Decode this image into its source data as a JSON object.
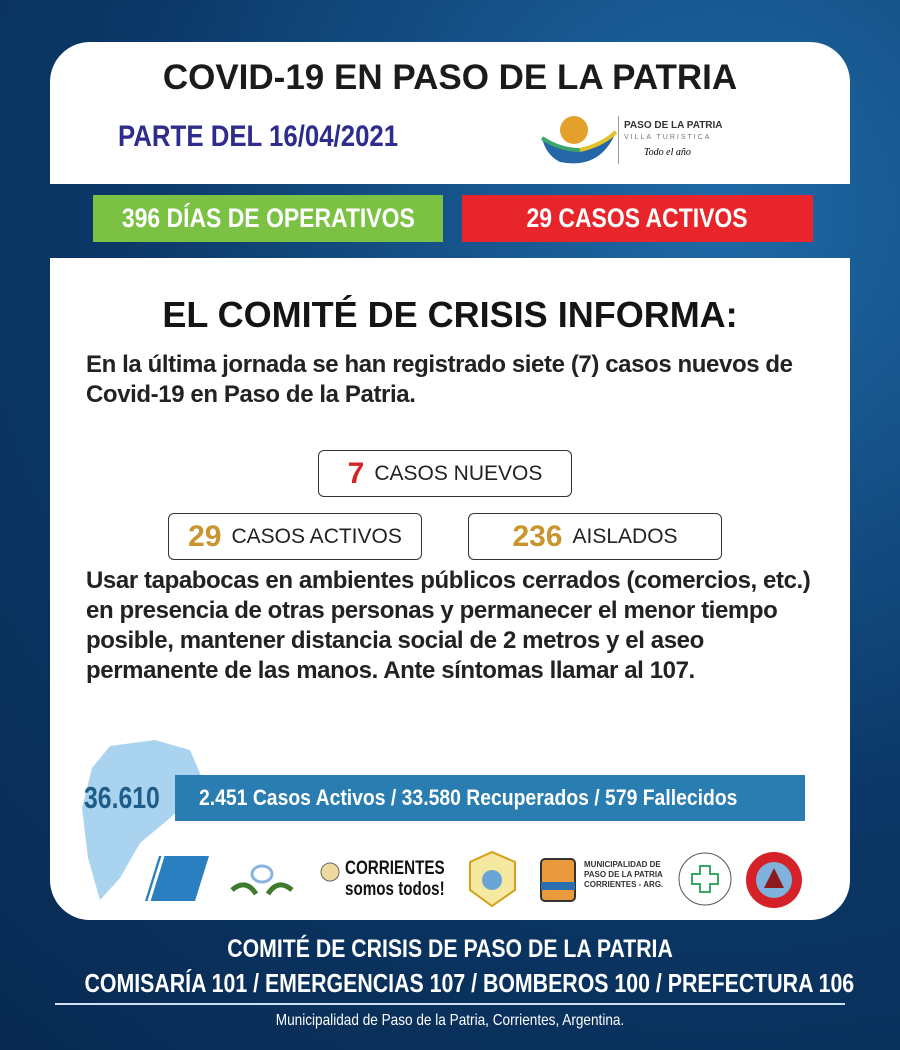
{
  "header": {
    "title": "COVID-19 EN PASO DE LA PATRIA",
    "date": "PARTE DEL 16/04/2021",
    "logo": {
      "name": "PASO DE LA PATRIA",
      "subtitle": "VILLA TURISTICA",
      "tagline": "Todo el año"
    }
  },
  "banners": {
    "days": "396 DÍAS DE OPERATIVOS",
    "active": "29 CASOS ACTIVOS",
    "days_color": "#7bc143",
    "active_color": "#e7252a"
  },
  "main": {
    "heading": "EL COMITÉ DE CRISIS INFORMA:",
    "intro": "En la última jornada se han registrado siete (7) casos nuevos de Covid-19 en Paso de la Patria.",
    "stats": [
      {
        "value": "7",
        "label": "CASOS NUEVOS",
        "color": "#d3252a"
      },
      {
        "value": "29",
        "label": "CASOS ACTIVOS",
        "color": "#c8952e"
      },
      {
        "value": "236",
        "label": "AISLADOS",
        "color": "#c8952e"
      }
    ],
    "advice": "Usar tapabocas en ambientes públicos cerrados (comercios, etc.) en presencia de otras personas y permanecer el menor tiempo posible, mantener distancia social de 2 metros y el aseo permanente de las manos. Ante síntomas llamar al 107.",
    "province": {
      "total": "36.610",
      "detail": "2.451 Casos Activos / 33.580 Recuperados / 579 Fallecidos"
    },
    "logos": [
      "Prefectura",
      "Gendarmería",
      "CORRIENTES somos todos!",
      "Policía de Corrientes",
      "MUNICIPALIDAD DE PASO DE LA PATRIA CORRIENTES - ARG.",
      "PASO DE LA PATRIA HOSPITAL CTES - ARGENTINA",
      "BOMBEROS VOLUNTARIOS"
    ]
  },
  "footer": {
    "line1": "COMITÉ DE CRISIS DE PASO DE LA PATRIA",
    "line2": "COMISARÍA 101 / EMERGENCIAS 107 / BOMBEROS 100 / PREFECTURA 106",
    "line3": "Municipalidad de Paso de la Patria, Corrientes, Argentina."
  }
}
